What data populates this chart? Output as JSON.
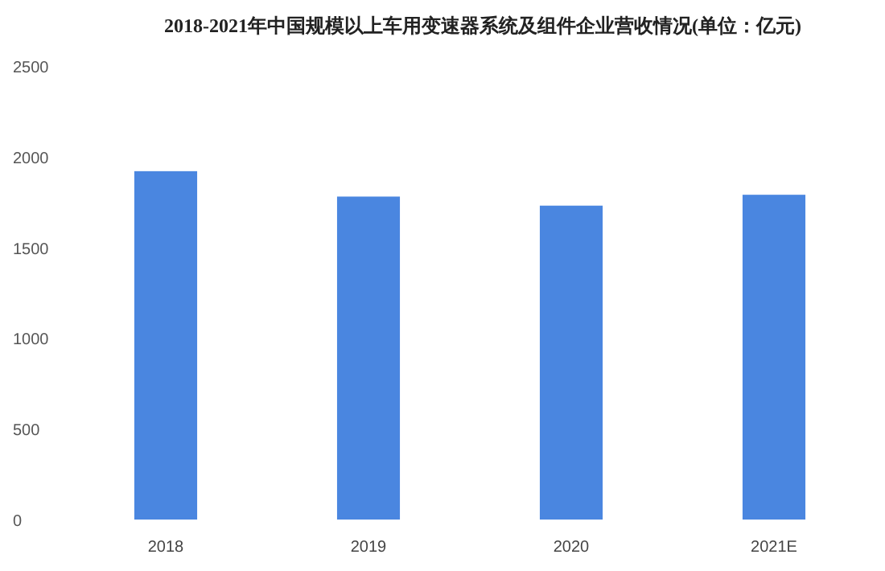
{
  "chart_data": {
    "type": "bar",
    "title": "2018-2021年中国规模以上车用变速器系统及组件企业营收情况(单位：亿元)",
    "categories": [
      "2018",
      "2019",
      "2020",
      "2021E"
    ],
    "values": [
      1920,
      1780,
      1730,
      1790
    ],
    "color": "#4a86e0",
    "ylim": [
      0,
      2500
    ],
    "yticks": [
      0,
      500,
      1000,
      1500,
      2000,
      2500
    ],
    "grid": false
  }
}
